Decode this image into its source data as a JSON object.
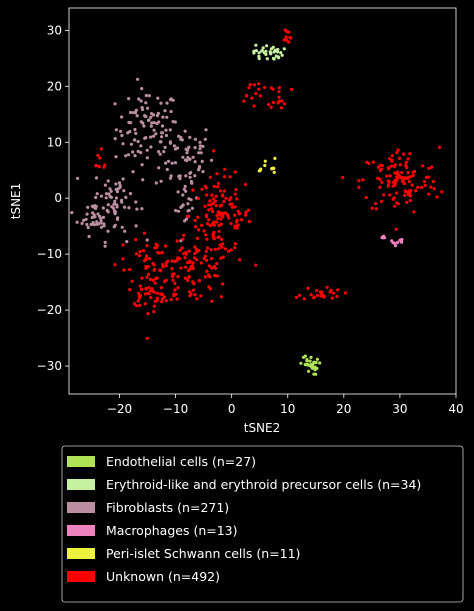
{
  "chart_data": {
    "type": "scatter",
    "title": "",
    "xlabel": "tSNE2",
    "ylabel": "tSNE1",
    "xlim": [
      -29,
      40
    ],
    "ylim": [
      -35,
      34
    ],
    "xticks": [
      -20,
      -10,
      0,
      10,
      20,
      30,
      40
    ],
    "yticks": [
      -30,
      -20,
      -10,
      0,
      10,
      20,
      30
    ],
    "xtick_labels": [
      "−20",
      "−10",
      "0",
      "10",
      "20",
      "30",
      "40"
    ],
    "ytick_labels": [
      "−30",
      "−20",
      "−10",
      "0",
      "10",
      "20",
      "30"
    ],
    "grid": false,
    "legend_position": "bottom",
    "series": [
      {
        "name": "Endothelial cells (n=27)",
        "color": "#b0e353",
        "n": 27,
        "clusters": [
          {
            "cx": 13.8,
            "cy": -29.8,
            "sx": 0.8,
            "sy": 0.9,
            "n": 27
          }
        ]
      },
      {
        "name": "Erythroid-like and erythroid precursor cells (n=34)",
        "color": "#c5f2a0",
        "n": 34,
        "clusters": [
          {
            "cx": 6.5,
            "cy": 26.0,
            "sx": 1.3,
            "sy": 0.7,
            "n": 34
          }
        ]
      },
      {
        "name": "Fibroblasts (n=271)",
        "color": "#bb8fa0",
        "n": 271,
        "clusters": [
          {
            "cx": -15.0,
            "cy": 12.5,
            "sx": 2.8,
            "sy": 3.5,
            "n": 90
          },
          {
            "cx": -8.5,
            "cy": 7.5,
            "sx": 2.6,
            "sy": 3.2,
            "n": 60
          },
          {
            "cx": -20.5,
            "cy": -0.5,
            "sx": 2.0,
            "sy": 3.5,
            "n": 60
          },
          {
            "cx": -24.5,
            "cy": -3.0,
            "sx": 1.5,
            "sy": 1.8,
            "n": 40
          },
          {
            "cx": -8.0,
            "cy": -1.5,
            "sx": 1.0,
            "sy": 1.8,
            "n": 21
          }
        ]
      },
      {
        "name": "Macrophages (n=13)",
        "color": "#ee82be",
        "n": 13,
        "clusters": [
          {
            "cx": 29.5,
            "cy": -7.8,
            "sx": 0.6,
            "sy": 0.3,
            "n": 8
          },
          {
            "cx": 27.0,
            "cy": -7.0,
            "sx": 0.3,
            "sy": 0.2,
            "n": 5
          }
        ]
      },
      {
        "name": "Peri-islet Schwann cells (n=11)",
        "color": "#eef23c",
        "n": 11,
        "clusters": [
          {
            "cx": 7.0,
            "cy": 5.5,
            "sx": 0.5,
            "sy": 0.8,
            "n": 8
          },
          {
            "cx": 5.0,
            "cy": 5.0,
            "sx": 0.4,
            "sy": 0.2,
            "n": 3
          }
        ]
      },
      {
        "name": "Unknown (n=492)",
        "color": "#ff0000",
        "n": 492,
        "clusters": [
          {
            "cx": -2.0,
            "cy": -3.0,
            "sx": 2.8,
            "sy": 3.5,
            "n": 120
          },
          {
            "cx": -7.0,
            "cy": -13.0,
            "sx": 3.5,
            "sy": 3.0,
            "n": 100
          },
          {
            "cx": -14.0,
            "cy": -13.0,
            "sx": 1.8,
            "sy": 3.0,
            "n": 50
          },
          {
            "cx": -15.0,
            "cy": -17.5,
            "sx": 2.0,
            "sy": 0.8,
            "n": 25
          },
          {
            "cx": 30.0,
            "cy": 3.0,
            "sx": 3.5,
            "sy": 3.0,
            "n": 120
          },
          {
            "cx": 16.0,
            "cy": -17.0,
            "sx": 1.8,
            "sy": 0.6,
            "n": 25
          },
          {
            "cx": 8.5,
            "cy": 18.5,
            "sx": 1.0,
            "sy": 1.2,
            "n": 15
          },
          {
            "cx": 9.8,
            "cy": 29.0,
            "sx": 0.4,
            "sy": 0.8,
            "n": 10
          },
          {
            "cx": 3.5,
            "cy": 18.5,
            "sx": 1.3,
            "sy": 1.8,
            "n": 12
          },
          {
            "cx": -24.0,
            "cy": 6.5,
            "sx": 1.2,
            "sy": 1.0,
            "n": 8
          },
          {
            "cx": -19.5,
            "cy": -11.0,
            "sx": 1.5,
            "sy": 2.0,
            "n": 7
          }
        ]
      }
    ]
  }
}
